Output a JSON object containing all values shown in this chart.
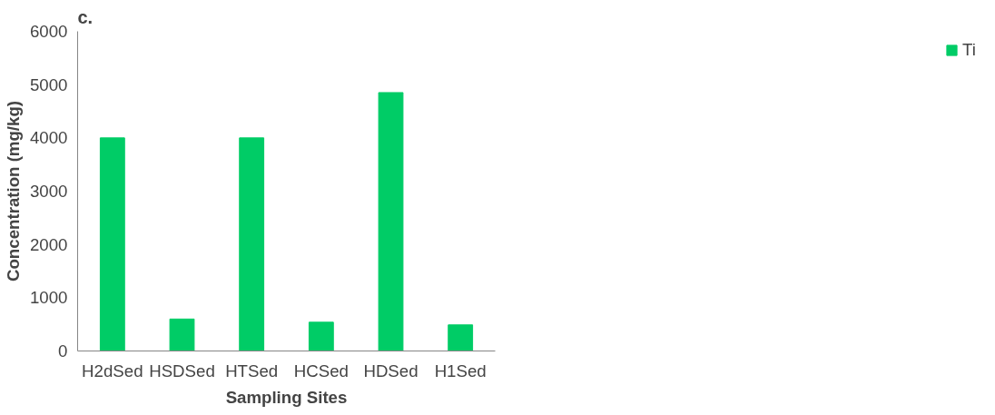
{
  "chart_data": {
    "type": "bar",
    "xlabel": "Sampling Sites",
    "ylabel": "Concentration (mg/kg)",
    "annotations": [
      "c."
    ],
    "categories": [
      "H2dSed",
      "HSDSed",
      "HTSed",
      "HCSed",
      "HDSed",
      "H1Sed"
    ],
    "series": [
      {
        "name": "Ti",
        "color": "#00cc66",
        "values": [
          4000,
          600,
          4000,
          540,
          4850,
          490
        ]
      }
    ],
    "ylim": [
      0,
      6000
    ],
    "yticks": [
      0,
      1000,
      2000,
      3000,
      4000,
      5000,
      6000
    ],
    "grid": false,
    "legend": "right"
  }
}
